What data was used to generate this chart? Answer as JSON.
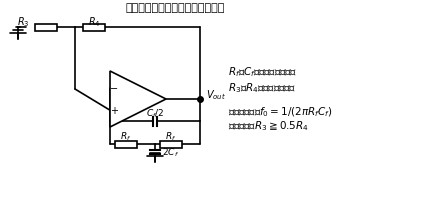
{
  "bg_color": "#ffffff",
  "line_color": "#000000",
  "fig_width": 4.35,
  "fig_height": 2.01,
  "title": "図３　ブリッジドＴ形ＲＣ発振器",
  "annotation_line1": "$R_f$，$C_f$：周波数設定素子",
  "annotation_line2": "$R_3$，$R_4$：振幅制御素子",
  "annotation_line3": "発振周波数：$f_0=1/(2\\pi R_f C_f)$",
  "annotation_line4": "発振条件：$R_3\\geqq 0.5R_4$"
}
